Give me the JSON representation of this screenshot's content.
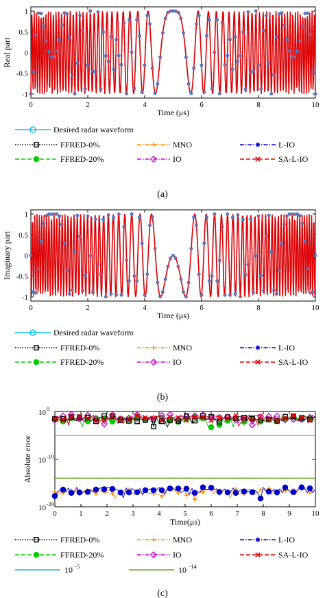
{
  "chart_data": [
    {
      "type": "line",
      "panel_label": "(a)",
      "xlabel": "Time (μs)",
      "ylabel": "Real part",
      "xlim": [
        0,
        10
      ],
      "ylim": [
        -1.1,
        1.1
      ],
      "x_ticks": [
        "0",
        "2",
        "4",
        "6",
        "8",
        "10"
      ],
      "y_ticks": [
        "-1",
        "-0.5",
        "0",
        "0.5",
        "1"
      ],
      "waveform": "real",
      "legend": [
        {
          "name": "Desired radar waveform",
          "color": "#00bfff",
          "marker": "circle-open",
          "dash": "solid"
        },
        {
          "name": "FFRED-0%",
          "color": "#000000",
          "marker": "square-open",
          "dash": "dotted"
        },
        {
          "name": "MNO",
          "color": "#ff8c00",
          "marker": "plus",
          "dash": "dashdot"
        },
        {
          "name": "L-IO",
          "color": "#0000cd",
          "marker": "asterisk",
          "dash": "dashdot"
        },
        {
          "name": "FFRED-20%",
          "color": "#00cc00",
          "marker": "circle-filled",
          "dash": "dashed"
        },
        {
          "name": "IO",
          "color": "#cc00cc",
          "marker": "diamond-open",
          "dash": "dashdot"
        },
        {
          "name": "SA-L-IO",
          "color": "#e00000",
          "marker": "x",
          "dash": "dashed"
        }
      ]
    },
    {
      "type": "line",
      "panel_label": "(b)",
      "xlabel": "Time (μs)",
      "ylabel": "Imaginary part",
      "xlim": [
        0,
        10
      ],
      "ylim": [
        -1.1,
        1.1
      ],
      "x_ticks": [
        "0",
        "2",
        "4",
        "6",
        "8",
        "10"
      ],
      "y_ticks": [
        "-1",
        "-0.5",
        "0",
        "0.5",
        "1"
      ],
      "waveform": "imag",
      "legend": [
        {
          "name": "Desired radar waveform",
          "color": "#00bfff",
          "marker": "circle-open",
          "dash": "solid"
        },
        {
          "name": "FFRED-0%",
          "color": "#000000",
          "marker": "square-open",
          "dash": "dotted"
        },
        {
          "name": "MNO",
          "color": "#ff8c00",
          "marker": "plus",
          "dash": "dashdot"
        },
        {
          "name": "L-IO",
          "color": "#0000cd",
          "marker": "asterisk",
          "dash": "dashdot"
        },
        {
          "name": "FFRED-20%",
          "color": "#00cc00",
          "marker": "circle-filled",
          "dash": "dashed"
        },
        {
          "name": "IO",
          "color": "#cc00cc",
          "marker": "diamond-open",
          "dash": "dashdot"
        },
        {
          "name": "SA-L-IO",
          "color": "#e00000",
          "marker": "x",
          "dash": "dashed"
        }
      ]
    },
    {
      "type": "scatter",
      "panel_label": "(c)",
      "xlabel": "Time(μs)",
      "ylabel": "Absolute error",
      "xlim": [
        0,
        10
      ],
      "ylim_log10": [
        -20,
        0
      ],
      "log_scale": "y",
      "x_ticks": [
        "0",
        "1",
        "2",
        "3",
        "4",
        "5",
        "6",
        "7",
        "8",
        "9",
        "10"
      ],
      "y_ticks": [
        "10",
        "10",
        "10"
      ],
      "y_tick_exponents": [
        "0",
        "-10",
        "-20"
      ],
      "series_log10_levels": {
        "FFRED-0%": -1.5,
        "MNO": -16.8,
        "L-IO": -16.5,
        "FFRED-20%": -1.6,
        "IO": -1.2,
        "SA-L-IO": -1.4
      },
      "reference_lines": [
        {
          "label": "10",
          "exponent": "−5",
          "log10": -5,
          "color": "#1fb0e6"
        },
        {
          "label": "10",
          "exponent": "−14",
          "log10": -14,
          "color": "#66a61e"
        }
      ],
      "legend": [
        {
          "name": "FFRED-0%",
          "color": "#000000",
          "marker": "square-open",
          "dash": "dotted"
        },
        {
          "name": "MNO",
          "color": "#ff8c00",
          "marker": "plus",
          "dash": "dashdot"
        },
        {
          "name": "L-IO",
          "color": "#0000cd",
          "marker": "asterisk",
          "dash": "dashdot"
        },
        {
          "name": "FFRED-20%",
          "color": "#00cc00",
          "marker": "circle-filled",
          "dash": "dashed"
        },
        {
          "name": "IO",
          "color": "#cc00cc",
          "marker": "diamond-open",
          "dash": "dashdot"
        },
        {
          "name": "SA-L-IO",
          "color": "#e00000",
          "marker": "x",
          "dash": "dashed"
        }
      ]
    }
  ]
}
